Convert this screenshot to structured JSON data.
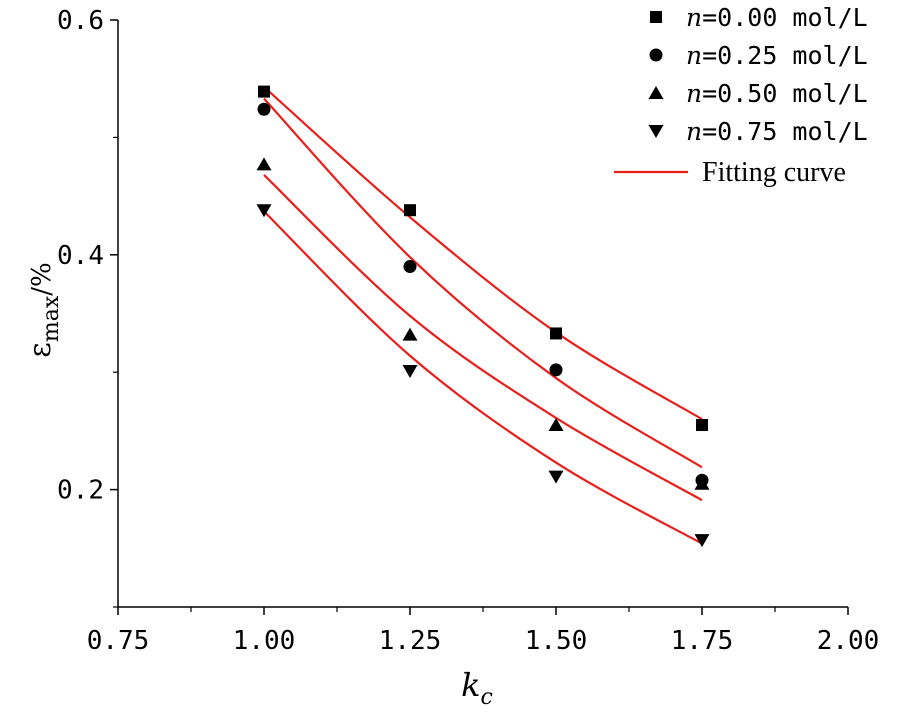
{
  "chart_data": {
    "type": "scatter",
    "title": "",
    "xlabel": "k",
    "xlabel_sub": "c",
    "ylabel": "ε",
    "ylabel_sub": "max",
    "ylabel_suffix": "/%",
    "xlim": [
      0.75,
      2.0
    ],
    "ylim": [
      0.1,
      0.6
    ],
    "xticks": [
      0.75,
      1.0,
      1.25,
      1.5,
      1.75,
      2.0
    ],
    "xtick_labels": [
      "0.75",
      "1.00",
      "1.25",
      "1.50",
      "1.75",
      "2.00"
    ],
    "yticks": [
      0.2,
      0.4,
      0.6
    ],
    "ytick_labels": [
      "0.2",
      "0.4",
      "0.6"
    ],
    "x": [
      1.0,
      1.25,
      1.5,
      1.75
    ],
    "legend_position": "top-right",
    "series": [
      {
        "name": "n=0.00 mol/L",
        "prefix": "n",
        "value_label": "=0.00 mol/L",
        "marker": "square",
        "values": [
          0.539,
          0.438,
          0.333,
          0.255
        ],
        "fit": [
          0.543,
          0.432,
          0.334,
          0.26
        ]
      },
      {
        "name": "n=0.25 mol/L",
        "prefix": "n",
        "value_label": "=0.25 mol/L",
        "marker": "circle",
        "values": [
          0.524,
          0.39,
          0.302,
          0.208
        ],
        "fit": [
          0.533,
          0.398,
          0.295,
          0.219
        ]
      },
      {
        "name": "n=0.50 mol/L",
        "prefix": "n",
        "value_label": "=0.50 mol/L",
        "marker": "triangle-up",
        "values": [
          0.477,
          0.332,
          0.255,
          0.205
        ],
        "fit": [
          0.468,
          0.348,
          0.261,
          0.191
        ]
      },
      {
        "name": "n=0.75 mol/L",
        "prefix": "n",
        "value_label": "=0.75 mol/L",
        "marker": "triangle-down",
        "values": [
          0.438,
          0.301,
          0.211,
          0.157
        ],
        "fit": [
          0.437,
          0.314,
          0.223,
          0.154
        ]
      }
    ],
    "fit_label": "Fitting curve",
    "fit_color": "#e8201c",
    "marker_color": "#000000"
  }
}
